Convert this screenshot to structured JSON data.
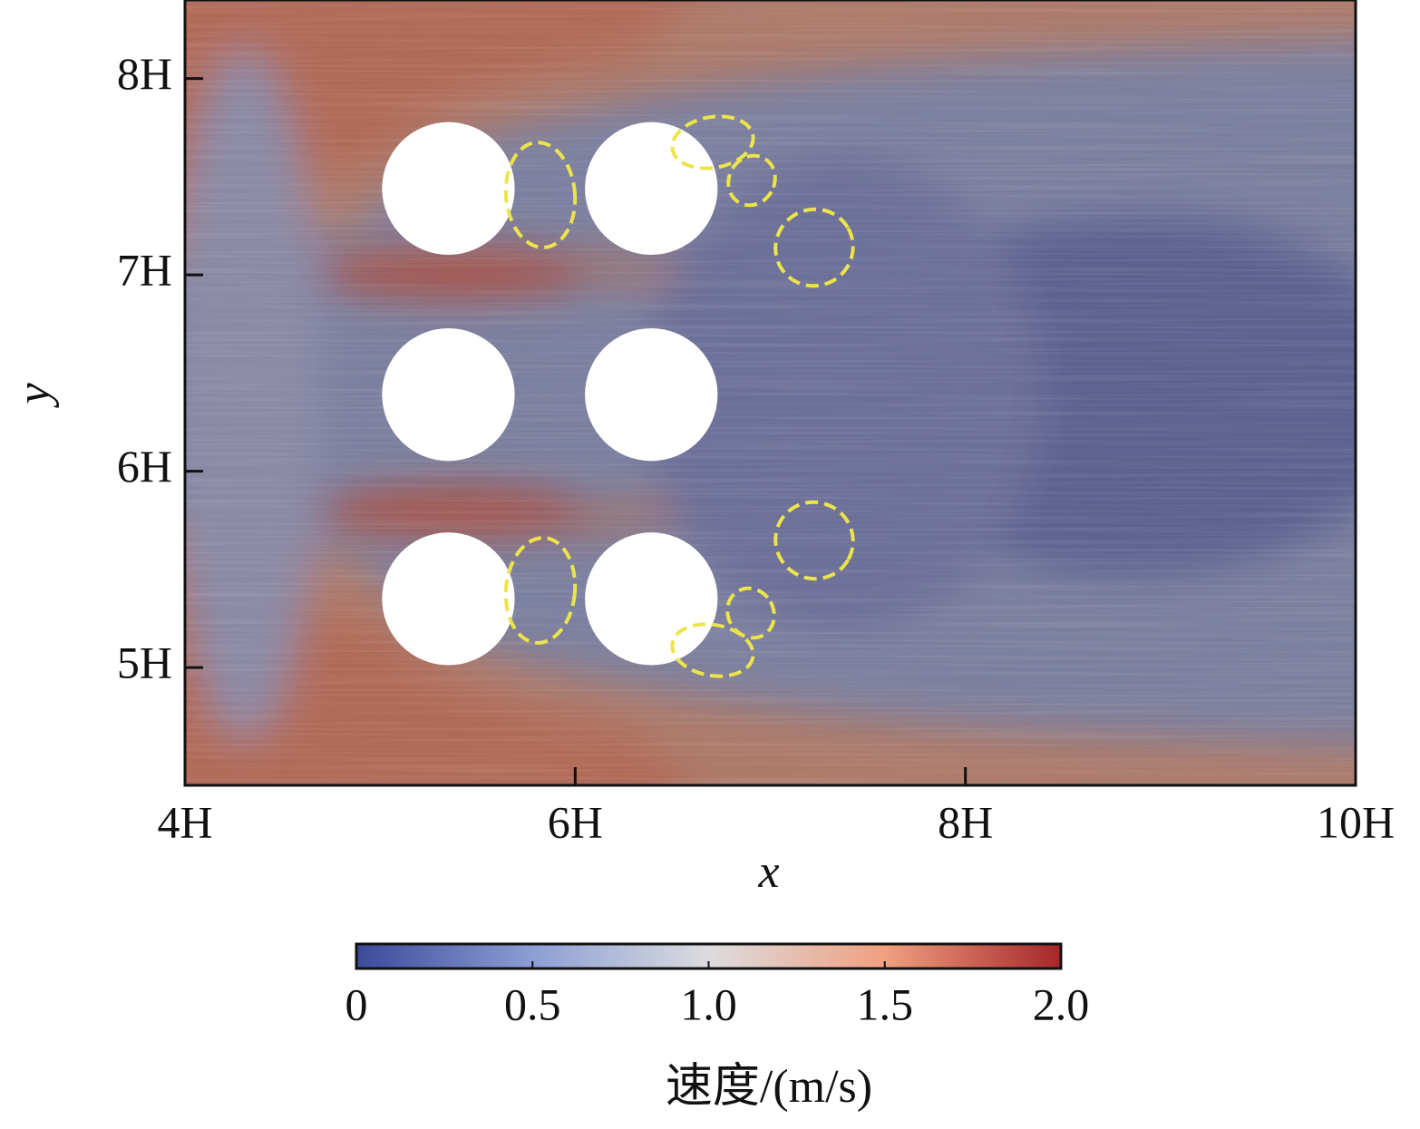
{
  "chart_data": {
    "type": "field",
    "x_label": "x",
    "y_label": "y",
    "xlim": [
      4,
      10
    ],
    "ylim": [
      4.4,
      8.4
    ],
    "xticks": [
      {
        "value": 4,
        "label": "4H"
      },
      {
        "value": 6,
        "label": "6H"
      },
      {
        "value": 8,
        "label": "8H"
      },
      {
        "value": 10,
        "label": "10H"
      }
    ],
    "yticks": [
      {
        "value": 5,
        "label": "5H"
      },
      {
        "value": 6,
        "label": "6H"
      },
      {
        "value": 7,
        "label": "7H"
      },
      {
        "value": 8,
        "label": "8H"
      }
    ],
    "cylinders": [
      {
        "x": 5.35,
        "y": 7.44,
        "r": 0.34
      },
      {
        "x": 6.39,
        "y": 7.44,
        "r": 0.34
      },
      {
        "x": 5.35,
        "y": 6.39,
        "r": 0.34
      },
      {
        "x": 6.39,
        "y": 6.39,
        "r": 0.34
      },
      {
        "x": 5.35,
        "y": 5.35,
        "r": 0.34
      },
      {
        "x": 6.39,
        "y": 5.35,
        "r": 0.34
      }
    ],
    "colorbar": {
      "label": "速度/(m/s)",
      "range": [
        0,
        2
      ],
      "ticks": [
        0,
        0.5,
        {
          "value": 1,
          "label": "1.0"
        },
        1.5,
        {
          "value": 2,
          "label": "2.0"
        }
      ],
      "colors": [
        "#3b4a9a",
        "#8c9ed4",
        "#dcdcdf",
        "#f0a080",
        "#a5262a"
      ]
    }
  }
}
